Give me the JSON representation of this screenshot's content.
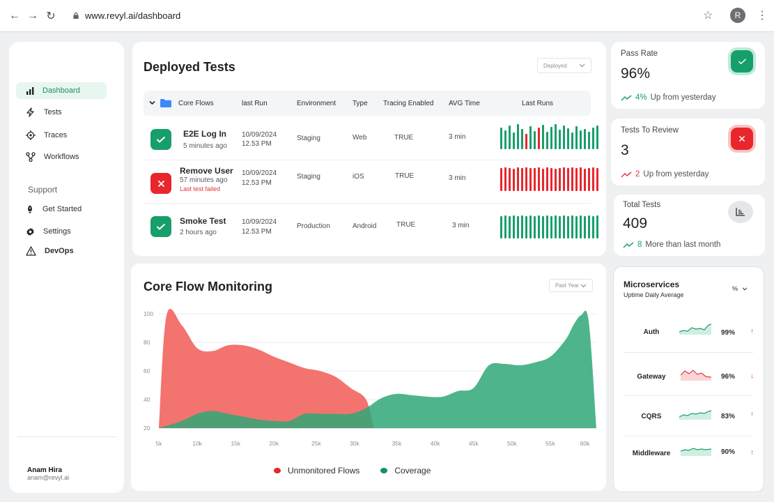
{
  "browser": {
    "url": "www.revyl.ai/dashboard",
    "profile_initial": "R"
  },
  "sidebar": {
    "items": [
      {
        "label": "Dashboard",
        "icon": "bar-chart-icon"
      },
      {
        "label": "Tests",
        "icon": "bolt-icon"
      },
      {
        "label": "Traces",
        "icon": "target-icon"
      },
      {
        "label": "Workflows",
        "icon": "workflow-icon"
      }
    ],
    "support_heading": "Support",
    "support_items": [
      {
        "label": "Get Started",
        "icon": "rocket-icon"
      },
      {
        "label": "Settings",
        "icon": "gear-icon"
      },
      {
        "label": "DevOps",
        "icon": "warning-icon"
      }
    ],
    "user": {
      "name": "Anam Hira",
      "email": "anam@revyl.ai"
    }
  },
  "deployed": {
    "title": "Deployed Tests",
    "filter": "Deployed",
    "group": "Core Flows",
    "columns": [
      "last Run",
      "Environment",
      "Type",
      "Tracing Enabled",
      "AVG Time",
      "Last Runs"
    ],
    "rows": [
      {
        "status": "pass",
        "name": "E2E Log In",
        "ago": "5 minutes ago",
        "error": "",
        "date": "10/09/2024",
        "time": "12.53 PM",
        "env": "Staging",
        "type": "Web",
        "tracing": "TRUE",
        "avg": "3 min",
        "runs": [
          "p",
          "p",
          "p",
          "p",
          "p",
          "p",
          "f",
          "p",
          "p",
          "f",
          "p",
          "p",
          "p",
          "p",
          "p",
          "p",
          "p",
          "p",
          "p",
          "p",
          "p",
          "p",
          "p",
          "p"
        ]
      },
      {
        "status": "fail",
        "name": "Remove User",
        "ago": "57 minutes ago",
        "error": "Last test failed",
        "date": "10/09/2024",
        "time": "12.53 PM",
        "env": "Staging",
        "type": "iOS",
        "tracing": "TRUE",
        "avg": "3 min",
        "runs": [
          "f",
          "f",
          "f",
          "f",
          "f",
          "f",
          "f",
          "f",
          "f",
          "f",
          "f",
          "f",
          "f",
          "f",
          "f",
          "f",
          "f",
          "f",
          "f",
          "f",
          "f",
          "f",
          "f",
          "f"
        ]
      },
      {
        "status": "pass",
        "name": "Smoke Test",
        "ago": "2 hours ago",
        "error": "",
        "date": "10/09/2024",
        "time": "12.53 PM",
        "env": "Production",
        "type": "Android",
        "tracing": "TRUE",
        "avg": "3 min",
        "runs": [
          "p",
          "p",
          "p",
          "p",
          "p",
          "p",
          "p",
          "p",
          "p",
          "p",
          "p",
          "p",
          "p",
          "p",
          "p",
          "p",
          "p",
          "p",
          "p",
          "p",
          "p",
          "p",
          "p",
          "p"
        ]
      }
    ]
  },
  "stats": [
    {
      "label": "Pass Rate",
      "value": "96%",
      "trend_num": "4%",
      "trend_text": "Up from yesterday",
      "tone": "up",
      "icon": "check-icon"
    },
    {
      "label": "Tests To Review",
      "value": "3",
      "trend_num": "2",
      "trend_text": "Up from yesterday",
      "tone": "bad",
      "icon": "close-icon"
    },
    {
      "label": "Total Tests",
      "value": "409",
      "trend_num": "8",
      "trend_text": "More than last month",
      "tone": "up",
      "icon": "chart-icon"
    }
  ],
  "microservices": {
    "title": "Microservices",
    "subtitle": "Uptime Daily Average",
    "unit_select": "%",
    "items": [
      {
        "name": "Auth",
        "value": "99%",
        "direction": "up"
      },
      {
        "name": "Gateway",
        "value": "96%",
        "direction": "down"
      },
      {
        "name": "CQRS",
        "value": "83%",
        "direction": "up"
      },
      {
        "name": "Middleware",
        "value": "90%",
        "direction": "up"
      }
    ]
  },
  "colors": {
    "accent": "#169160",
    "pass": "#179f6b",
    "fail": "#e8262c",
    "red_area": "#f26b66",
    "green_area": "#2fa777"
  },
  "chart_data": {
    "type": "area",
    "title": "Core Flow Monitoring",
    "filter": "Past Year",
    "x_ticks": [
      "5k",
      "10k",
      "15k",
      "20k",
      "25k",
      "30k",
      "35k",
      "40k",
      "45k",
      "50k",
      "55k",
      "60k"
    ],
    "y_ticks": [
      20,
      40,
      60,
      80,
      100
    ],
    "ylim": [
      20,
      105
    ],
    "xlim": [
      5000,
      62000
    ],
    "series": [
      {
        "name": "Unmonitored Flows",
        "color": "#f26b66",
        "x": [
          5000,
          6000,
          8000,
          10000,
          12000,
          14000,
          16000,
          18000,
          20000,
          22000,
          24000,
          26000,
          28000,
          30000,
          32000,
          33000
        ],
        "y": [
          20,
          99,
          92,
          76,
          74,
          78,
          78,
          75,
          70,
          66,
          62,
          60,
          56,
          48,
          40,
          20
        ]
      },
      {
        "name": "Coverage",
        "color": "#2fa777",
        "x": [
          5000,
          8000,
          10000,
          12000,
          14000,
          16000,
          18000,
          20000,
          22000,
          24000,
          26000,
          28000,
          30000,
          32000,
          34000,
          36000,
          38000,
          40000,
          42000,
          44000,
          46000,
          48000,
          50000,
          52000,
          54000,
          56000,
          58000,
          59000,
          60000,
          61000,
          62000
        ],
        "y": [
          20,
          25,
          30,
          32,
          30,
          28,
          26,
          25,
          25,
          30,
          30,
          30,
          30,
          34,
          41,
          44,
          43,
          42,
          42,
          46,
          48,
          64,
          65,
          64,
          66,
          70,
          82,
          92,
          99,
          95,
          20
        ]
      }
    ]
  }
}
